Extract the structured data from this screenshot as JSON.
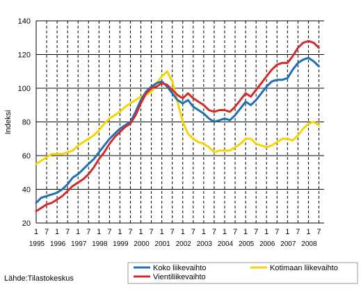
{
  "source": "Lähde:Tilastokeskus",
  "chart_data": {
    "type": "line",
    "title": "",
    "xlabel": "",
    "ylabel": "Indeksi",
    "ylim": [
      20,
      140
    ],
    "yticks": [
      20,
      40,
      60,
      80,
      100,
      120,
      140
    ],
    "xlim": [
      1995.0,
      2008.75
    ],
    "years": [
      "1995",
      "1996",
      "1997",
      "1998",
      "1999",
      "2000",
      "2001",
      "2002",
      "2003",
      "2004",
      "2005",
      "2006",
      "2007",
      "2008"
    ],
    "month_labels": [
      "1",
      "7"
    ],
    "grid": {
      "horizontal": "solid",
      "vertical": "dashed"
    },
    "legend_position": "bottom-right",
    "series": [
      {
        "name": "Koko liikevaihto",
        "color": "#1f6fb4",
        "x": [
          1995.0,
          1995.25,
          1995.5,
          1995.75,
          1996.0,
          1996.25,
          1996.5,
          1996.75,
          1997.0,
          1997.25,
          1997.5,
          1997.75,
          1998.0,
          1998.25,
          1998.5,
          1998.75,
          1999.0,
          1999.25,
          1999.5,
          1999.75,
          2000.0,
          2000.25,
          2000.5,
          2000.75,
          2001.0,
          2001.25,
          2001.5,
          2001.75,
          2002.0,
          2002.25,
          2002.5,
          2002.75,
          2003.0,
          2003.25,
          2003.5,
          2003.75,
          2004.0,
          2004.25,
          2004.5,
          2004.75,
          2005.0,
          2005.25,
          2005.5,
          2005.75,
          2006.0,
          2006.25,
          2006.5,
          2006.75,
          2007.0,
          2007.25,
          2007.5,
          2007.75,
          2008.0,
          2008.25,
          2008.5
        ],
        "y": [
          32,
          35,
          36,
          37,
          38,
          40,
          43,
          47,
          49,
          52,
          55,
          58,
          62,
          66,
          70,
          73,
          76,
          78,
          80,
          86,
          93,
          98,
          101,
          103,
          104,
          101,
          97,
          93,
          91,
          93,
          89,
          87,
          85,
          82,
          80,
          81,
          82,
          81,
          84,
          88,
          92,
          90,
          93,
          97,
          101,
          104,
          105,
          105,
          106,
          111,
          115,
          117,
          118,
          116,
          113
        ]
      },
      {
        "name": "Kotimaan liikevaihto",
        "color": "#f5d400",
        "x": [
          1995.0,
          1995.25,
          1995.5,
          1995.75,
          1996.0,
          1996.25,
          1996.5,
          1996.75,
          1997.0,
          1997.25,
          1997.5,
          1997.75,
          1998.0,
          1998.25,
          1998.5,
          1998.75,
          1999.0,
          1999.25,
          1999.5,
          1999.75,
          2000.0,
          2000.25,
          2000.5,
          2000.75,
          2001.0,
          2001.25,
          2001.5,
          2001.75,
          2002.0,
          2002.25,
          2002.5,
          2002.75,
          2003.0,
          2003.25,
          2003.5,
          2003.75,
          2004.0,
          2004.25,
          2004.5,
          2004.75,
          2005.0,
          2005.25,
          2005.5,
          2005.75,
          2006.0,
          2006.25,
          2006.5,
          2006.75,
          2007.0,
          2007.25,
          2007.5,
          2007.75,
          2008.0,
          2008.25,
          2008.5
        ],
        "y": [
          55,
          57,
          59,
          61,
          61,
          61,
          62,
          63,
          66,
          68,
          70,
          72,
          75,
          79,
          82,
          84,
          86,
          89,
          91,
          93,
          95,
          96,
          98,
          103,
          107,
          110,
          104,
          92,
          80,
          73,
          70,
          68,
          67,
          65,
          62,
          63,
          63,
          63,
          65,
          67,
          70,
          70,
          67,
          66,
          65,
          66,
          68,
          70,
          70,
          69,
          72,
          76,
          79,
          80,
          78
        ]
      },
      {
        "name": "Vientiliikevaihto",
        "color": "#d22b2b",
        "x": [
          1995.0,
          1995.25,
          1995.5,
          1995.75,
          1996.0,
          1996.25,
          1996.5,
          1996.75,
          1997.0,
          1997.25,
          1997.5,
          1997.75,
          1998.0,
          1998.25,
          1998.5,
          1998.75,
          1999.0,
          1999.25,
          1999.5,
          1999.75,
          2000.0,
          2000.25,
          2000.5,
          2000.75,
          2001.0,
          2001.25,
          2001.5,
          2001.75,
          2002.0,
          2002.25,
          2002.5,
          2002.75,
          2003.0,
          2003.25,
          2003.5,
          2003.75,
          2004.0,
          2004.25,
          2004.5,
          2004.75,
          2005.0,
          2005.25,
          2005.5,
          2005.75,
          2006.0,
          2006.25,
          2006.5,
          2006.75,
          2007.0,
          2007.25,
          2007.5,
          2007.75,
          2008.0,
          2008.25,
          2008.5
        ],
        "y": [
          27,
          29,
          31,
          32,
          34,
          36,
          39,
          42,
          44,
          46,
          49,
          53,
          58,
          62,
          67,
          71,
          74,
          77,
          79,
          84,
          91,
          97,
          100,
          101,
          103,
          102,
          99,
          96,
          94,
          97,
          94,
          92,
          90,
          87,
          86,
          87,
          87,
          86,
          89,
          93,
          97,
          95,
          99,
          103,
          107,
          111,
          114,
          115,
          115,
          119,
          124,
          127,
          128,
          127,
          124
        ]
      }
    ]
  }
}
